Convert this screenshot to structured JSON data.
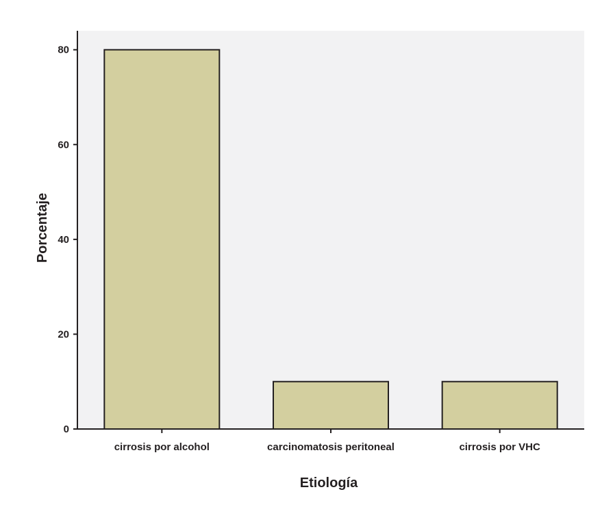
{
  "chart_data": {
    "type": "bar",
    "categories": [
      "cirrosis por alcohol",
      "carcinomatosis peritoneal",
      "cirrosis por VHC"
    ],
    "values": [
      80,
      10,
      10
    ],
    "xlabel": "Etiología",
    "ylabel": "Porcentaje",
    "ylim": [
      0,
      84
    ],
    "yticks": [
      0,
      20,
      40,
      60,
      80
    ],
    "grid": false,
    "legend": "none",
    "colors": {
      "bar_fill": "#d3cf9f",
      "bar_stroke": "#231f20",
      "plot_background": "#f2f2f3",
      "axis": "#231f20"
    }
  }
}
